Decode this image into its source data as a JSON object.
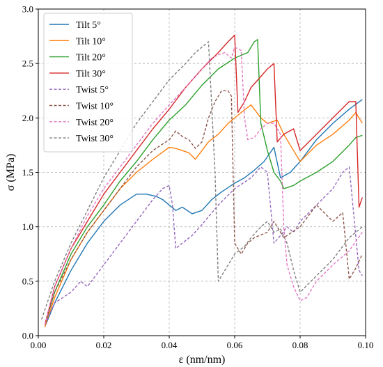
{
  "chart_data": {
    "type": "line",
    "xlabel": "ε (nm/nm)",
    "ylabel": "σ (MPa)",
    "xlim": [
      0.0,
      0.1
    ],
    "ylim": [
      0.0,
      3.0
    ],
    "xticks": [
      "0.00",
      "0.02",
      "0.04",
      "0.06",
      "0.08",
      "0.10"
    ],
    "yticks": [
      "0.0",
      "0.5",
      "1.0",
      "1.5",
      "2.0",
      "2.5",
      "3.0"
    ],
    "grid": true,
    "legend_position": "top-left",
    "series": [
      {
        "name": "Tilt 5°",
        "color": "#1f77b4",
        "dash": "solid",
        "x": [
          0.002,
          0.005,
          0.01,
          0.015,
          0.02,
          0.025,
          0.03,
          0.033,
          0.036,
          0.038,
          0.04,
          0.042,
          0.044,
          0.047,
          0.05,
          0.053,
          0.056,
          0.06,
          0.063,
          0.066,
          0.069,
          0.072,
          0.074,
          0.077,
          0.08,
          0.085,
          0.09,
          0.095,
          0.099
        ],
        "y": [
          0.08,
          0.3,
          0.6,
          0.85,
          1.05,
          1.2,
          1.3,
          1.3,
          1.28,
          1.25,
          1.2,
          1.15,
          1.18,
          1.12,
          1.15,
          1.25,
          1.32,
          1.4,
          1.45,
          1.52,
          1.6,
          1.73,
          1.45,
          1.5,
          1.6,
          1.8,
          1.95,
          2.08,
          2.17
        ]
      },
      {
        "name": "Tilt 10°",
        "color": "#ff7f0e",
        "dash": "solid",
        "x": [
          0.002,
          0.005,
          0.01,
          0.015,
          0.02,
          0.025,
          0.03,
          0.035,
          0.04,
          0.042,
          0.044,
          0.046,
          0.048,
          0.05,
          0.052,
          0.055,
          0.058,
          0.062,
          0.065,
          0.068,
          0.07,
          0.073,
          0.075,
          0.078,
          0.08,
          0.085,
          0.09,
          0.095,
          0.097,
          0.099
        ],
        "y": [
          0.08,
          0.35,
          0.7,
          0.95,
          1.15,
          1.35,
          1.5,
          1.62,
          1.73,
          1.72,
          1.7,
          1.68,
          1.62,
          1.7,
          1.78,
          1.85,
          1.95,
          2.05,
          2.12,
          2.0,
          1.95,
          1.98,
          1.85,
          1.7,
          1.6,
          1.75,
          1.85,
          1.98,
          2.05,
          1.95
        ]
      },
      {
        "name": "Tilt 20°",
        "color": "#2ca02c",
        "dash": "solid",
        "x": [
          0.002,
          0.005,
          0.01,
          0.015,
          0.02,
          0.025,
          0.03,
          0.035,
          0.04,
          0.045,
          0.05,
          0.055,
          0.06,
          0.064,
          0.066,
          0.067,
          0.068,
          0.07,
          0.072,
          0.074,
          0.075,
          0.078,
          0.08,
          0.085,
          0.09,
          0.095,
          0.097,
          0.099
        ],
        "y": [
          0.1,
          0.4,
          0.75,
          1.0,
          1.2,
          1.42,
          1.6,
          1.8,
          1.98,
          2.12,
          2.3,
          2.45,
          2.55,
          2.6,
          2.7,
          2.72,
          1.95,
          1.7,
          1.5,
          1.42,
          1.35,
          1.38,
          1.42,
          1.5,
          1.6,
          1.75,
          1.82,
          1.84
        ]
      },
      {
        "name": "Tilt 30°",
        "color": "#d62728",
        "dash": "solid",
        "x": [
          0.002,
          0.005,
          0.01,
          0.015,
          0.02,
          0.025,
          0.03,
          0.035,
          0.04,
          0.045,
          0.05,
          0.055,
          0.058,
          0.06,
          0.061,
          0.063,
          0.065,
          0.068,
          0.07,
          0.072,
          0.073,
          0.075,
          0.078,
          0.08,
          0.085,
          0.09,
          0.095,
          0.097,
          0.098,
          0.099
        ],
        "y": [
          0.1,
          0.45,
          0.8,
          1.05,
          1.3,
          1.5,
          1.7,
          1.9,
          2.08,
          2.28,
          2.45,
          2.6,
          2.7,
          2.76,
          2.05,
          2.15,
          2.28,
          2.38,
          2.45,
          2.5,
          1.78,
          1.85,
          1.9,
          1.7,
          1.85,
          2.0,
          2.15,
          2.15,
          1.18,
          1.27
        ]
      },
      {
        "name": "Twist 5°",
        "color": "#9467bd",
        "dash": "dashed",
        "x": [
          0.002,
          0.005,
          0.01,
          0.013,
          0.015,
          0.02,
          0.025,
          0.03,
          0.035,
          0.038,
          0.04,
          0.041,
          0.042,
          0.044,
          0.047,
          0.05,
          0.055,
          0.06,
          0.065,
          0.068,
          0.07,
          0.072,
          0.074,
          0.076,
          0.078,
          0.08,
          0.085,
          0.09,
          0.093,
          0.095,
          0.098,
          0.099
        ],
        "y": [
          0.1,
          0.3,
          0.4,
          0.5,
          0.45,
          0.65,
          0.85,
          1.05,
          1.25,
          1.35,
          1.38,
          1.2,
          0.8,
          0.85,
          0.92,
          1.02,
          1.2,
          1.35,
          1.45,
          1.55,
          1.5,
          0.85,
          0.92,
          1.0,
          0.95,
          1.05,
          1.2,
          1.35,
          1.5,
          1.55,
          0.6,
          0.55
        ]
      },
      {
        "name": "Twist 10°",
        "color": "#8c564b",
        "dash": "dashed",
        "x": [
          0.002,
          0.005,
          0.01,
          0.015,
          0.02,
          0.025,
          0.03,
          0.035,
          0.04,
          0.042,
          0.044,
          0.046,
          0.048,
          0.05,
          0.052,
          0.054,
          0.056,
          0.058,
          0.059,
          0.06,
          0.062,
          0.064,
          0.066,
          0.07,
          0.072,
          0.075,
          0.08,
          0.085,
          0.09,
          0.093,
          0.095,
          0.097,
          0.099
        ],
        "y": [
          0.1,
          0.4,
          0.7,
          0.95,
          1.15,
          1.35,
          1.55,
          1.7,
          1.8,
          1.88,
          1.83,
          1.8,
          1.72,
          1.78,
          2.0,
          2.15,
          2.25,
          2.25,
          2.2,
          0.85,
          0.75,
          0.85,
          0.9,
          0.95,
          1.05,
          0.9,
          1.0,
          1.2,
          1.05,
          1.13,
          0.52,
          0.62,
          0.75
        ]
      },
      {
        "name": "Twist 20°",
        "color": "#e377c2",
        "dash": "dashed",
        "x": [
          0.002,
          0.005,
          0.01,
          0.015,
          0.02,
          0.025,
          0.03,
          0.035,
          0.04,
          0.045,
          0.05,
          0.053,
          0.055,
          0.057,
          0.059,
          0.06,
          0.062,
          0.063,
          0.064,
          0.066,
          0.068,
          0.07,
          0.072,
          0.074,
          0.075,
          0.076,
          0.078,
          0.08,
          0.082,
          0.085,
          0.09,
          0.095,
          0.099
        ],
        "y": [
          0.1,
          0.45,
          0.8,
          1.1,
          1.35,
          1.55,
          1.75,
          1.95,
          2.12,
          2.28,
          2.45,
          2.55,
          2.58,
          2.6,
          2.55,
          2.65,
          2.62,
          2.0,
          1.8,
          1.82,
          1.9,
          1.95,
          1.95,
          1.85,
          1.0,
          0.65,
          0.45,
          0.32,
          0.35,
          0.5,
          0.65,
          0.78,
          0.95
        ]
      },
      {
        "name": "Twist 30°",
        "color": "#7f7f7f",
        "dash": "dashed",
        "x": [
          0.001,
          0.005,
          0.01,
          0.015,
          0.02,
          0.025,
          0.03,
          0.035,
          0.04,
          0.045,
          0.048,
          0.05,
          0.052,
          0.053,
          0.054,
          0.055,
          0.056,
          0.06,
          0.063,
          0.065,
          0.068,
          0.07,
          0.072,
          0.074,
          0.076,
          0.078,
          0.08,
          0.085,
          0.09,
          0.095,
          0.099
        ],
        "y": [
          0.15,
          0.5,
          0.85,
          1.15,
          1.45,
          1.7,
          1.95,
          2.15,
          2.35,
          2.5,
          2.6,
          2.65,
          2.7,
          2.1,
          1.5,
          0.5,
          0.55,
          0.75,
          0.82,
          0.9,
          1.0,
          1.05,
          0.95,
          0.98,
          0.85,
          0.6,
          0.4,
          0.55,
          0.7,
          0.9,
          1.0
        ]
      }
    ]
  }
}
